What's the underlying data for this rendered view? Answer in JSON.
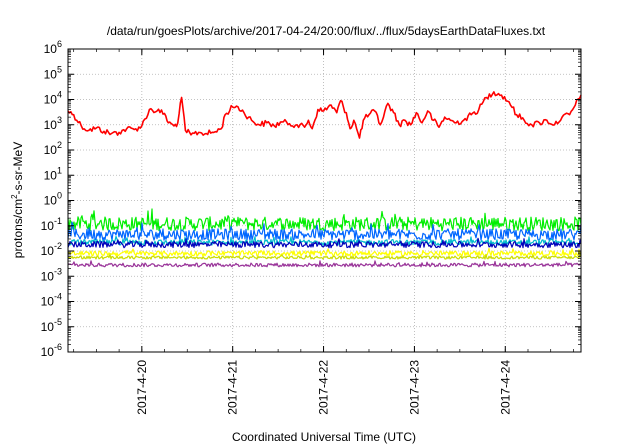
{
  "chart_data": {
    "type": "line",
    "title": "/data/run/goesPlots/archive/2017-04-24/20:00/flux/../flux/5daysEarthDataFluxes.txt",
    "xlabel": "Coordinated Universal Time (UTC)",
    "ylabel": "protons/cm",
    "ylabel_sup": "2",
    "ylabel_rest": "-s-sr-MeV",
    "x_unit": "days",
    "xlim": [
      "2017-04-19T04:30",
      "2017-04-24T20:00"
    ],
    "x_ticks": [
      {
        "date": "2017-04-20T00:00",
        "label": "2017-4-20"
      },
      {
        "date": "2017-04-21T00:00",
        "label": "2017-4-21"
      },
      {
        "date": "2017-04-22T00:00",
        "label": "2017-4-22"
      },
      {
        "date": "2017-04-23T00:00",
        "label": "2017-4-23"
      },
      {
        "date": "2017-04-24T00:00",
        "label": "2017-4-24"
      }
    ],
    "y_scale": "log",
    "ylim": [
      1e-06,
      1000000.0
    ],
    "y_ticks": [
      {
        "value": 1e-06,
        "base": "10",
        "exp": "-6"
      },
      {
        "value": 1e-05,
        "base": "10",
        "exp": "-5"
      },
      {
        "value": 0.0001,
        "base": "10",
        "exp": "-4"
      },
      {
        "value": 0.001,
        "base": "10",
        "exp": "-3"
      },
      {
        "value": 0.01,
        "base": "10",
        "exp": "-2"
      },
      {
        "value": 0.1,
        "base": "10",
        "exp": "-1"
      },
      {
        "value": 1,
        "base": "10",
        "exp": "0"
      },
      {
        "value": 10,
        "base": "10",
        "exp": "1"
      },
      {
        "value": 100,
        "base": "10",
        "exp": "2"
      },
      {
        "value": 1000,
        "base": "10",
        "exp": "3"
      },
      {
        "value": 10000,
        "base": "10",
        "exp": "4"
      },
      {
        "value": 100000,
        "base": "10",
        "exp": "5"
      },
      {
        "value": 1000000,
        "base": "10",
        "exp": "6"
      }
    ],
    "grid": true,
    "legend": "none",
    "series": [
      {
        "color": "#ff0000",
        "points": [
          [
            "2017-04-19T04:30",
            3500
          ],
          [
            "2017-04-19T06:00",
            2500
          ],
          [
            "2017-04-19T08:00",
            900
          ],
          [
            "2017-04-19T10:00",
            600
          ],
          [
            "2017-04-19T12:00",
            750
          ],
          [
            "2017-04-19T14:00",
            550
          ],
          [
            "2017-04-19T16:00",
            450
          ],
          [
            "2017-04-19T18:00",
            500
          ],
          [
            "2017-04-19T20:00",
            700
          ],
          [
            "2017-04-19T22:00",
            650
          ],
          [
            "2017-04-20T00:00",
            900
          ],
          [
            "2017-04-20T02:00",
            4000
          ],
          [
            "2017-04-20T04:00",
            3500
          ],
          [
            "2017-04-20T06:00",
            2800
          ],
          [
            "2017-04-20T07:00",
            1200
          ],
          [
            "2017-04-20T08:30",
            900
          ],
          [
            "2017-04-20T09:30",
            1200
          ],
          [
            "2017-04-20T10:30",
            12000
          ],
          [
            "2017-04-20T11:30",
            600
          ],
          [
            "2017-04-20T13:00",
            400
          ],
          [
            "2017-04-20T15:00",
            500
          ],
          [
            "2017-04-20T17:00",
            450
          ],
          [
            "2017-04-20T19:00",
            500
          ],
          [
            "2017-04-20T21:00",
            700
          ],
          [
            "2017-04-20T22:00",
            2500
          ],
          [
            "2017-04-21T00:00",
            5000
          ],
          [
            "2017-04-21T01:00",
            5500
          ],
          [
            "2017-04-21T03:00",
            3000
          ],
          [
            "2017-04-21T05:00",
            1500
          ],
          [
            "2017-04-21T07:00",
            1000
          ],
          [
            "2017-04-21T09:00",
            1200
          ],
          [
            "2017-04-21T11:00",
            900
          ],
          [
            "2017-04-21T13:00",
            1300
          ],
          [
            "2017-04-21T15:00",
            1100
          ],
          [
            "2017-04-21T17:00",
            1000
          ],
          [
            "2017-04-21T19:00",
            800
          ],
          [
            "2017-04-21T20:00",
            1500
          ],
          [
            "2017-04-21T21:00",
            700
          ],
          [
            "2017-04-21T22:30",
            4000
          ],
          [
            "2017-04-22T00:00",
            3500
          ],
          [
            "2017-04-22T02:00",
            6000
          ],
          [
            "2017-04-22T03:30",
            3000
          ],
          [
            "2017-04-22T04:30",
            9000
          ],
          [
            "2017-04-22T06:00",
            3000
          ],
          [
            "2017-04-22T07:00",
            700
          ],
          [
            "2017-04-22T08:00",
            1500
          ],
          [
            "2017-04-22T09:30",
            300
          ],
          [
            "2017-04-22T10:30",
            1500
          ],
          [
            "2017-04-22T12:00",
            2500
          ],
          [
            "2017-04-22T13:30",
            3500
          ],
          [
            "2017-04-22T15:00",
            1000
          ],
          [
            "2017-04-22T17:00",
            7000
          ],
          [
            "2017-04-22T18:30",
            3000
          ],
          [
            "2017-04-22T20:00",
            1000
          ],
          [
            "2017-04-22T21:30",
            1500
          ],
          [
            "2017-04-22T23:00",
            1000
          ],
          [
            "2017-04-23T00:30",
            3000
          ],
          [
            "2017-04-23T02:00",
            1200
          ],
          [
            "2017-04-23T03:30",
            3500
          ],
          [
            "2017-04-23T05:00",
            1500
          ],
          [
            "2017-04-23T06:30",
            800
          ],
          [
            "2017-04-23T08:00",
            2000
          ],
          [
            "2017-04-23T09:30",
            1500
          ],
          [
            "2017-04-23T11:00",
            1200
          ],
          [
            "2017-04-23T13:00",
            1500
          ],
          [
            "2017-04-23T15:00",
            2500
          ],
          [
            "2017-04-23T17:00",
            4000
          ],
          [
            "2017-04-23T19:00",
            12000
          ],
          [
            "2017-04-23T21:00",
            20000
          ],
          [
            "2017-04-23T23:00",
            15000
          ],
          [
            "2017-04-24T01:00",
            8000
          ],
          [
            "2017-04-24T03:00",
            2500
          ],
          [
            "2017-04-24T05:00",
            1500
          ],
          [
            "2017-04-24T07:00",
            1000
          ],
          [
            "2017-04-24T09:00",
            1200
          ],
          [
            "2017-04-24T11:00",
            1500
          ],
          [
            "2017-04-24T13:00",
            1000
          ],
          [
            "2017-04-24T15:00",
            2000
          ],
          [
            "2017-04-24T17:00",
            2500
          ],
          [
            "2017-04-24T18:30",
            6000
          ],
          [
            "2017-04-24T20:00",
            15000
          ]
        ]
      },
      {
        "color": "#00ee00",
        "level": 0.12,
        "spread": 0.55
      },
      {
        "color": "#0066ff",
        "level": 0.045,
        "spread": 0.45
      },
      {
        "color": "#00bbcc",
        "level": 0.022,
        "spread": 0.22
      },
      {
        "color": "#0000bb",
        "level": 0.018,
        "spread": 0.25
      },
      {
        "color": "#ffff00",
        "level": 0.008,
        "spread": 0.2
      },
      {
        "color": "#ccdd00",
        "level": 0.0055,
        "spread": 0.12
      },
      {
        "color": "#993399",
        "level": 0.0028,
        "spread": 0.15
      }
    ]
  }
}
